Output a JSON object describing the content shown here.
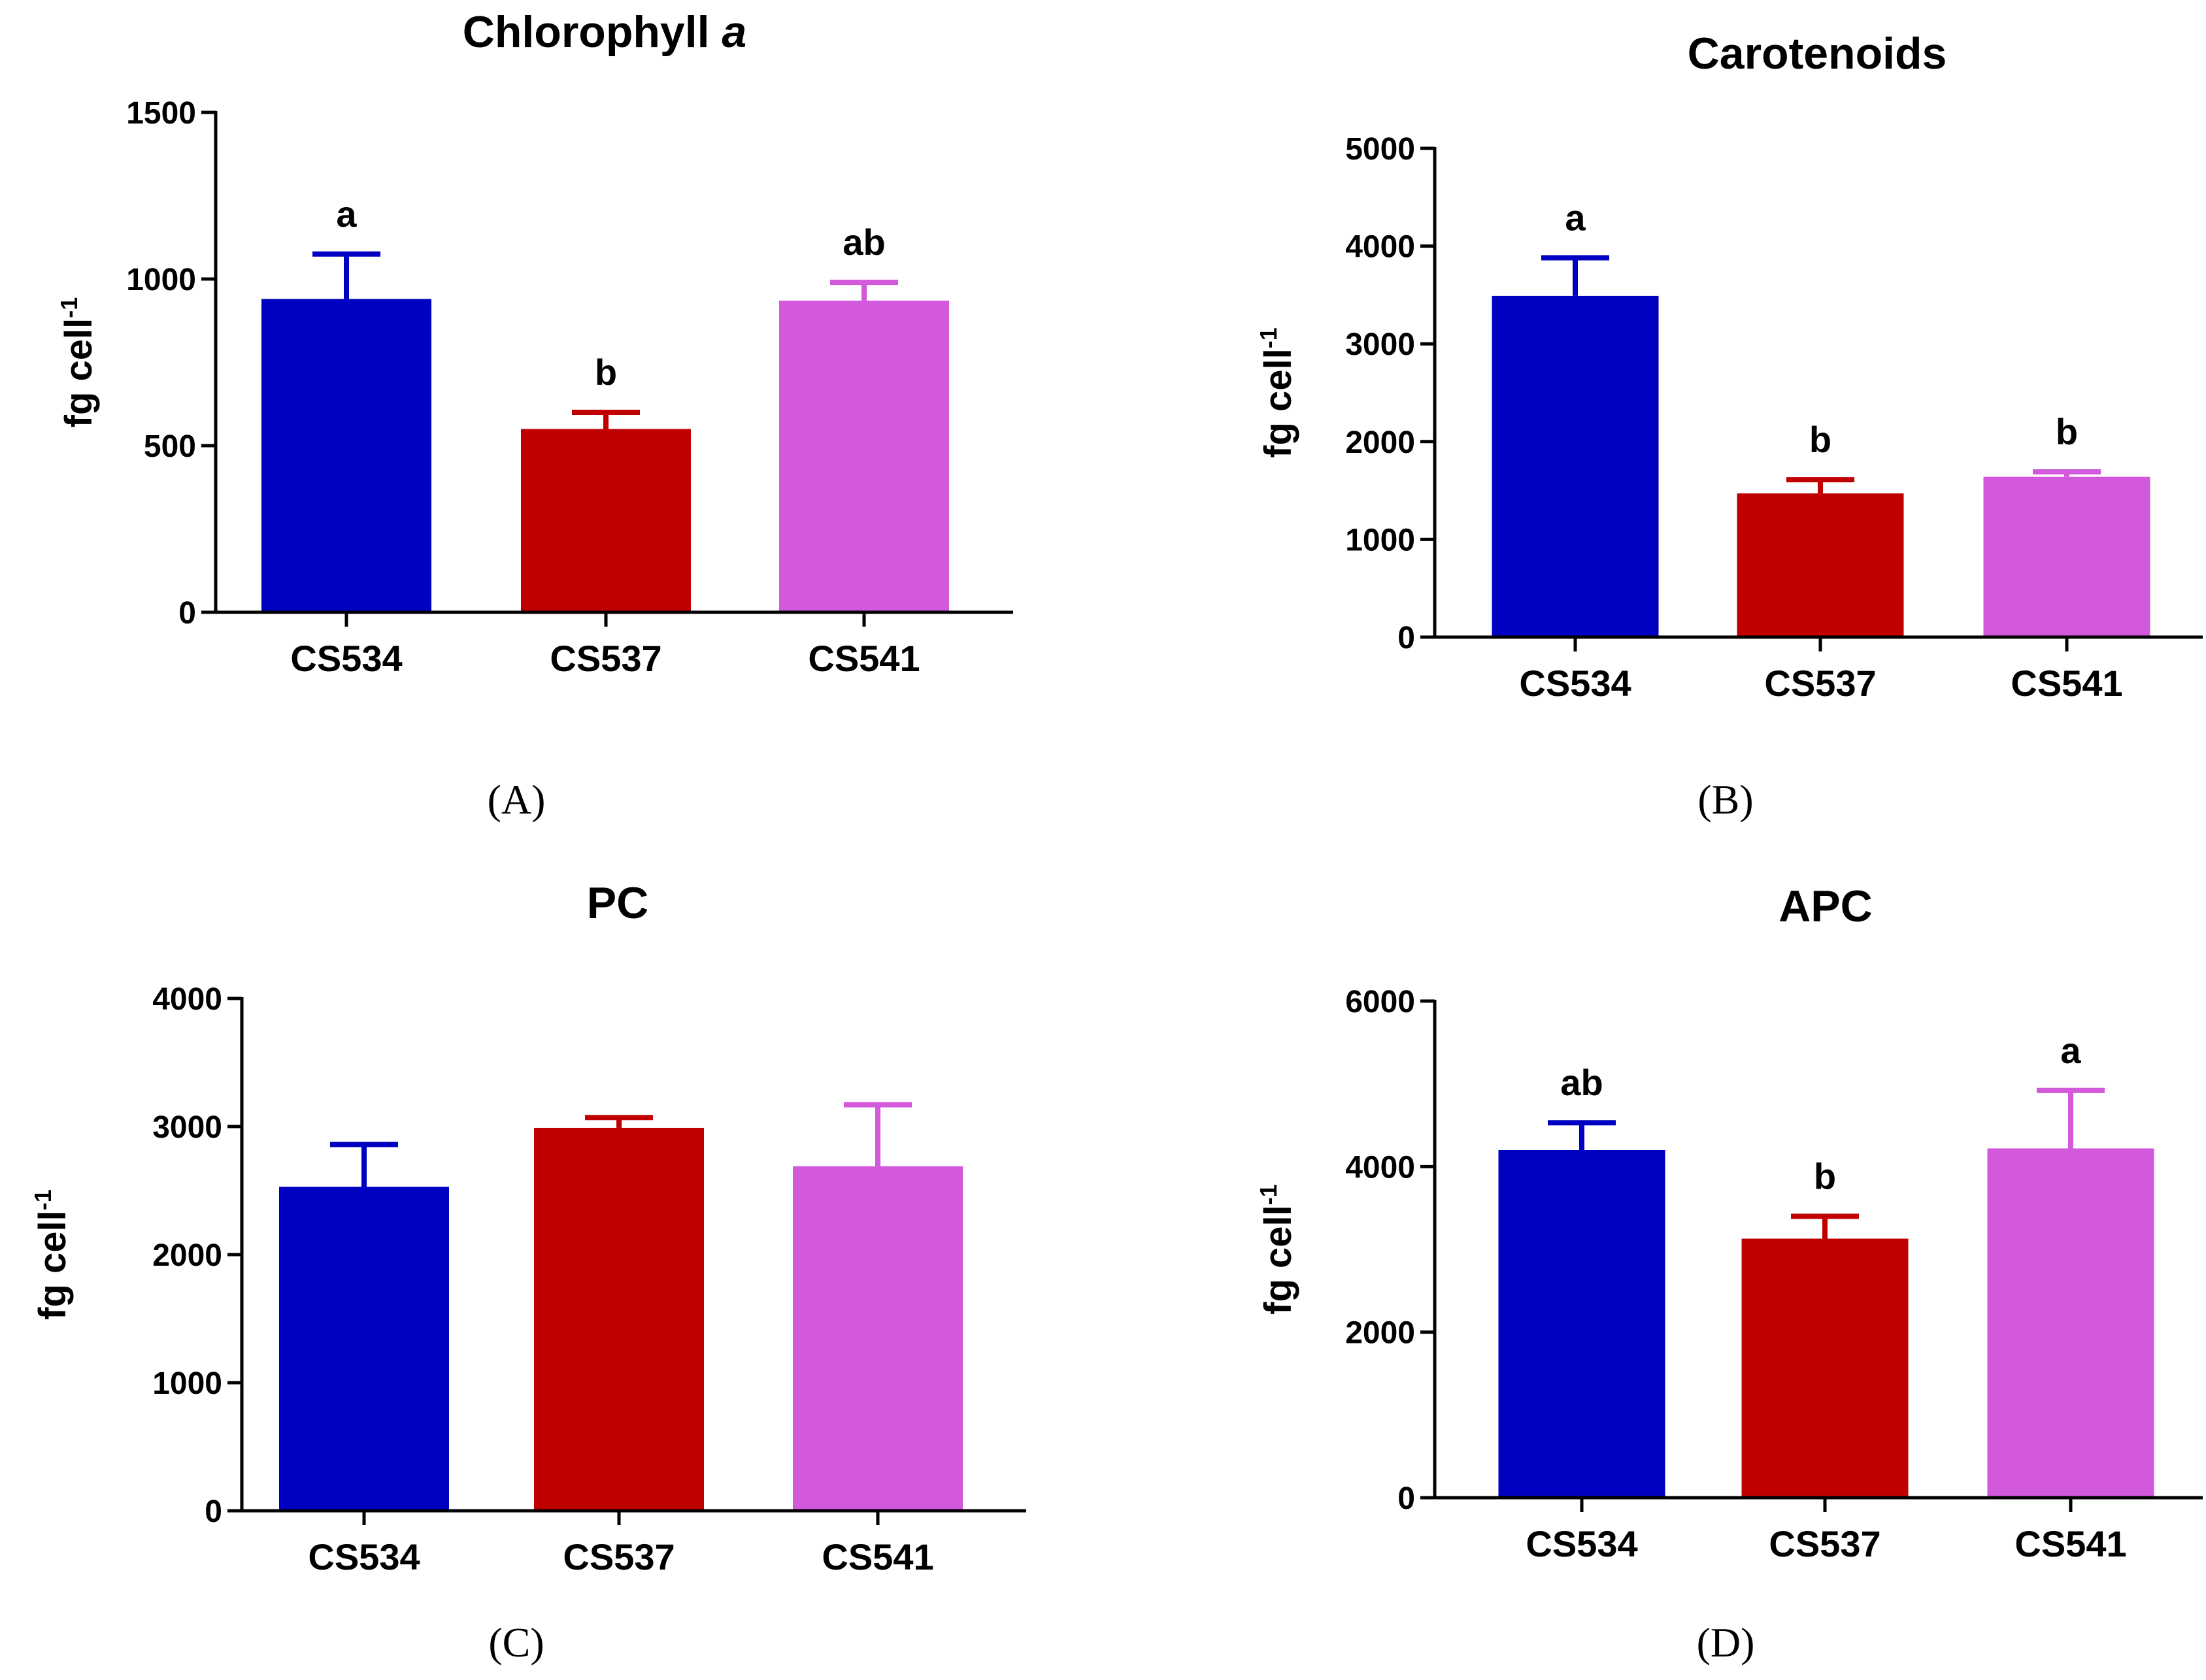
{
  "chart_data": [
    {
      "type": "bar",
      "panel": "(A)",
      "title": "Chlorophyll",
      "title_italic": "a",
      "ylabel": "fg cell",
      "ylabel_sup": "-1",
      "xlabel": "",
      "categories": [
        "CS534",
        "CS537",
        "CS541"
      ],
      "values": [
        940,
        550,
        935
      ],
      "errors": [
        135,
        50,
        55
      ],
      "letters": [
        "a",
        "b",
        "ab"
      ],
      "colors": [
        "#0000c0",
        "#c00000",
        "#d258dc"
      ],
      "ylim": [
        0,
        1500
      ],
      "yticks": [
        0,
        500,
        1000,
        1500
      ]
    },
    {
      "type": "bar",
      "panel": "(B)",
      "title": "Carotenoids",
      "title_italic": "",
      "ylabel": "fg cell",
      "ylabel_sup": "-1",
      "xlabel": "",
      "categories": [
        "CS534",
        "CS537",
        "CS541"
      ],
      "values": [
        3490,
        1470,
        1640
      ],
      "errors": [
        390,
        140,
        50
      ],
      "letters": [
        "a",
        "b",
        "b"
      ],
      "colors": [
        "#0000c0",
        "#c00000",
        "#d258dc"
      ],
      "ylim": [
        0,
        5000
      ],
      "yticks": [
        0,
        1000,
        2000,
        3000,
        4000,
        5000
      ]
    },
    {
      "type": "bar",
      "panel": "(C)",
      "title": "PC",
      "title_italic": "",
      "ylabel": "fg cell",
      "ylabel_sup": "-1",
      "xlabel": "",
      "categories": [
        "CS534",
        "CS537",
        "CS541"
      ],
      "values": [
        2530,
        2990,
        2690
      ],
      "errors": [
        330,
        80,
        480
      ],
      "letters": [
        "",
        "",
        ""
      ],
      "colors": [
        "#0000c0",
        "#c00000",
        "#d258dc"
      ],
      "ylim": [
        0,
        4000
      ],
      "yticks": [
        0,
        1000,
        2000,
        3000,
        4000
      ]
    },
    {
      "type": "bar",
      "panel": "(D)",
      "title": "APC",
      "title_italic": "",
      "ylabel": "fg cell",
      "ylabel_sup": "-1",
      "xlabel": "",
      "categories": [
        "CS534",
        "CS537",
        "CS541"
      ],
      "values": [
        4200,
        3130,
        4220
      ],
      "errors": [
        330,
        270,
        700
      ],
      "letters": [
        "ab",
        "b",
        "a"
      ],
      "colors": [
        "#0000c0",
        "#c00000",
        "#d258dc"
      ],
      "ylim": [
        0,
        6000
      ],
      "yticks": [
        0,
        2000,
        4000,
        6000
      ]
    }
  ]
}
